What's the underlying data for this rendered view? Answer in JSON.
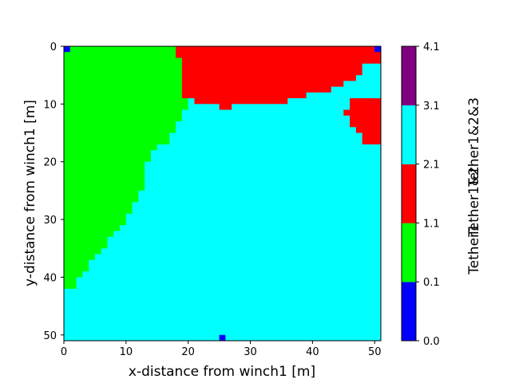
{
  "chart_data": {
    "type": "heatmap",
    "xlabel": "x-distance from winch1 [m]",
    "ylabel": "y-distance from winch1 [m]",
    "xlim": [
      0,
      51
    ],
    "ylim": [
      51,
      0
    ],
    "x_ticks": [
      0,
      10,
      20,
      30,
      40,
      50
    ],
    "y_ticks": [
      0,
      10,
      20,
      30,
      40,
      50
    ],
    "grid": false,
    "colorbar": {
      "ticks": [
        0.0,
        0.1,
        1.1,
        2.1,
        3.1,
        4.1
      ],
      "tick_labels": [
        "0.0",
        "0.1",
        "1.1",
        "2.1",
        "3.1",
        "4.1"
      ],
      "bins": [
        {
          "from": 0.0,
          "to": 0.1,
          "color": "#0000ff"
        },
        {
          "from": 0.1,
          "to": 1.1,
          "color": "#00ff00"
        },
        {
          "from": 1.1,
          "to": 2.1,
          "color": "#ff0000"
        },
        {
          "from": 2.1,
          "to": 3.1,
          "color": "#00ffff"
        },
        {
          "from": 3.1,
          "to": 4.1,
          "color": "#800080"
        }
      ],
      "labels": [
        "Tether1",
        "Tether1&2",
        "Tether1&2&3"
      ]
    },
    "background_color": "#00ffff",
    "green_region": {
      "color": "#00ff00",
      "rows": [
        [
          0,
          17
        ],
        [
          1,
          18
        ],
        [
          2,
          18
        ],
        [
          3,
          18
        ],
        [
          4,
          18
        ],
        [
          5,
          19
        ],
        [
          6,
          19
        ],
        [
          7,
          19
        ],
        [
          8,
          20
        ],
        [
          9,
          19
        ],
        [
          10,
          19
        ],
        [
          11,
          18
        ],
        [
          12,
          18
        ],
        [
          13,
          17
        ],
        [
          14,
          17
        ],
        [
          15,
          16
        ],
        [
          16,
          16
        ],
        [
          17,
          14
        ],
        [
          18,
          13
        ],
        [
          19,
          13
        ],
        [
          20,
          12
        ],
        [
          21,
          12
        ],
        [
          22,
          12
        ],
        [
          23,
          12
        ],
        [
          24,
          12
        ],
        [
          25,
          11
        ],
        [
          26,
          11
        ],
        [
          27,
          10
        ],
        [
          28,
          10
        ],
        [
          29,
          9
        ],
        [
          30,
          9
        ],
        [
          31,
          8
        ],
        [
          32,
          7
        ],
        [
          33,
          6
        ],
        [
          34,
          6
        ],
        [
          35,
          5
        ],
        [
          36,
          4
        ],
        [
          37,
          3
        ],
        [
          38,
          3
        ],
        [
          39,
          2
        ],
        [
          40,
          1
        ],
        [
          41,
          1
        ]
      ]
    },
    "red_region": {
      "color": "#ff0000",
      "rows": [
        [
          0,
          18,
          51
        ],
        [
          1,
          18,
          51
        ],
        [
          2,
          19,
          50
        ],
        [
          3,
          19,
          48
        ],
        [
          4,
          19,
          47
        ],
        [
          5,
          19,
          46
        ],
        [
          6,
          19,
          44
        ],
        [
          7,
          19,
          42
        ],
        [
          8,
          19,
          38
        ],
        [
          9,
          21,
          35
        ],
        [
          10,
          25,
          26
        ],
        [
          9,
          46,
          51
        ],
        [
          10,
          46,
          51
        ],
        [
          11,
          45,
          51
        ],
        [
          12,
          46,
          51
        ],
        [
          13,
          46,
          51
        ],
        [
          14,
          47,
          51
        ],
        [
          15,
          48,
          51
        ],
        [
          16,
          48,
          51
        ]
      ]
    },
    "cyan_overrides": [
      [
        3,
        48
      ],
      [
        3,
        49
      ],
      [
        4,
        48
      ]
    ],
    "blue_cells": [
      [
        0,
        0
      ],
      [
        0,
        50
      ],
      [
        50,
        25
      ]
    ]
  }
}
